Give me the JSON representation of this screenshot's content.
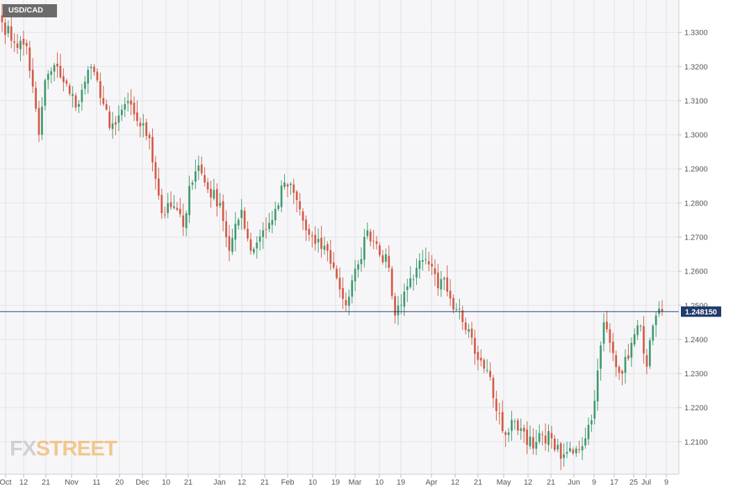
{
  "symbol": "USD/CAD",
  "logo": {
    "part1": "FX",
    "part2": "STREET"
  },
  "current_price_label": "1.248150",
  "colors": {
    "up": "#3f9a6f",
    "down": "#d35a45",
    "price_line": "#1f3a6b",
    "grid": "#e3e3e6",
    "plot_bg": "#f6f6f8"
  },
  "chart_data": {
    "type": "candlestick",
    "title": "USD/CAD",
    "ylim": [
      1.2005,
      1.3395
    ],
    "y_ticks": [
      "1.2100",
      "1.2200",
      "1.2300",
      "1.2400",
      "1.2500",
      "1.2600",
      "1.2700",
      "1.2800",
      "1.2900",
      "1.3000",
      "1.3100",
      "1.3200",
      "1.3300"
    ],
    "x_tick_labels": [
      "Oct",
      "12",
      "21",
      "Nov",
      "11",
      "20",
      "Dec",
      "10",
      "21",
      "Jan",
      "12",
      "21",
      "Feb",
      "10",
      "19",
      "Mar",
      "10",
      "19",
      "Apr",
      "12",
      "21",
      "May",
      "12",
      "21",
      "Jun",
      "9",
      "17",
      "25",
      "Jul",
      "9"
    ],
    "grid": true,
    "current_price": 1.24815,
    "anchors": [
      [
        0,
        1.333
      ],
      [
        4,
        1.327
      ],
      [
        8,
        1.326
      ],
      [
        12,
        1.3
      ],
      [
        14,
        1.316
      ],
      [
        18,
        1.32
      ],
      [
        22,
        1.312
      ],
      [
        25,
        1.309
      ],
      [
        28,
        1.319
      ],
      [
        31,
        1.316
      ],
      [
        35,
        1.302
      ],
      [
        37,
        1.303
      ],
      [
        40,
        1.309
      ],
      [
        43,
        1.306
      ],
      [
        48,
        1.299
      ],
      [
        52,
        1.277
      ],
      [
        56,
        1.279
      ],
      [
        59,
        1.273
      ],
      [
        61,
        1.285
      ],
      [
        64,
        1.291
      ],
      [
        67,
        1.284
      ],
      [
        71,
        1.28
      ],
      [
        74,
        1.266
      ],
      [
        78,
        1.278
      ],
      [
        81,
        1.266
      ],
      [
        85,
        1.272
      ],
      [
        88,
        1.275
      ],
      [
        92,
        1.286
      ],
      [
        95,
        1.283
      ],
      [
        99,
        1.272
      ],
      [
        102,
        1.268
      ],
      [
        106,
        1.266
      ],
      [
        109,
        1.258
      ],
      [
        112,
        1.25
      ],
      [
        116,
        1.262
      ],
      [
        119,
        1.272
      ],
      [
        122,
        1.268
      ],
      [
        126,
        1.261
      ],
      [
        128,
        1.247
      ],
      [
        131,
        1.254
      ],
      [
        135,
        1.261
      ],
      [
        139,
        1.262
      ],
      [
        142,
        1.255
      ],
      [
        144,
        1.258
      ],
      [
        146,
        1.252
      ],
      [
        149,
        1.249
      ],
      [
        152,
        1.243
      ],
      [
        155,
        1.234
      ],
      [
        159,
        1.229
      ],
      [
        161,
        1.219
      ],
      [
        164,
        1.212
      ],
      [
        167,
        1.216
      ],
      [
        170,
        1.213
      ],
      [
        173,
        1.208
      ],
      [
        176,
        1.212
      ],
      [
        179,
        1.211
      ],
      [
        182,
        1.205
      ],
      [
        184,
        1.207
      ],
      [
        187,
        1.208
      ],
      [
        190,
        1.211
      ],
      [
        193,
        1.222
      ],
      [
        196,
        1.245
      ],
      [
        199,
        1.236
      ],
      [
        202,
        1.23
      ],
      [
        205,
        1.239
      ],
      [
        208,
        1.244
      ],
      [
        210,
        1.232
      ],
      [
        212,
        1.244
      ],
      [
        215,
        1.2482
      ]
    ],
    "y_units": "price"
  }
}
